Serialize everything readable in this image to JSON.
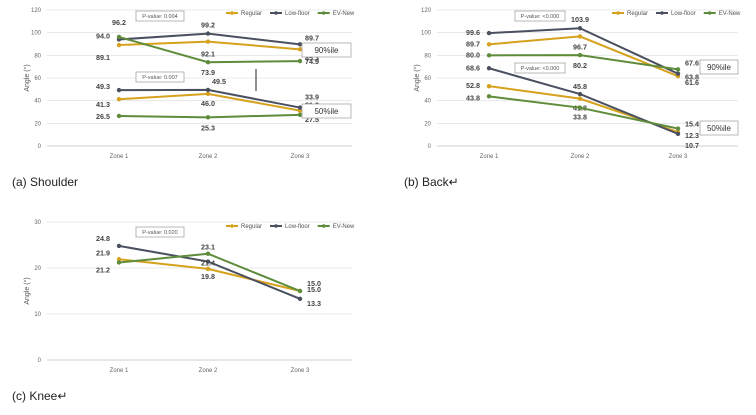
{
  "colors": {
    "Regular": "#d6a21e",
    "Low-floor": "#4a5060",
    "EV-New": "#5e8c3a"
  },
  "chart_data": [
    {
      "type": "line",
      "caption": "(a)  Shoulder",
      "categories": [
        "Zone 1",
        "Zone 2",
        "Zone 3"
      ],
      "ylabel": "Angle (°)",
      "ylim": [
        0,
        120
      ],
      "yticks": [
        0,
        20,
        40,
        60,
        80,
        100,
        120
      ],
      "legend": "top-right",
      "series": [
        {
          "name": "Regular",
          "values": [
            89.1,
            92.1,
            85.3
          ]
        },
        {
          "name": "Low-floor",
          "values": [
            94.0,
            99.2,
            89.7
          ]
        },
        {
          "name": "EV-New",
          "values": [
            96.2,
            73.9,
            74.9
          ]
        },
        {
          "name": "Regular",
          "values": [
            41.3,
            46.0,
            31.2
          ]
        },
        {
          "name": "Low-floor",
          "values": [
            49.3,
            49.5,
            33.9
          ]
        },
        {
          "name": "EV-New",
          "values": [
            26.5,
            25.3,
            27.5
          ]
        }
      ],
      "annotations": [
        {
          "text": "P-value: 0.004"
        },
        {
          "text": "P-value: 0.007"
        },
        {
          "text": "90%ile"
        },
        {
          "text": "50%ile"
        }
      ]
    },
    {
      "type": "line",
      "caption": "(b)  Back↵",
      "categories": [
        "Zone 1",
        "Zone 2",
        "Zone 3"
      ],
      "ylabel": "Angle (°)",
      "ylim": [
        0,
        120
      ],
      "yticks": [
        0,
        20,
        40,
        60,
        80,
        100,
        120
      ],
      "legend": "top-right",
      "series": [
        {
          "name": "Regular",
          "values": [
            89.7,
            96.7,
            61.6
          ]
        },
        {
          "name": "Low-floor",
          "values": [
            99.6,
            103.9,
            63.8
          ]
        },
        {
          "name": "EV-New",
          "values": [
            80.0,
            80.2,
            67.6
          ]
        },
        {
          "name": "Regular",
          "values": [
            52.8,
            41.8,
            12.3
          ]
        },
        {
          "name": "Low-floor",
          "values": [
            68.6,
            45.8,
            10.7
          ]
        },
        {
          "name": "EV-New",
          "values": [
            43.8,
            33.8,
            15.4
          ]
        }
      ],
      "annotations": [
        {
          "text": "P-value: <0.000"
        },
        {
          "text": "P-value: <0.000"
        },
        {
          "text": "90%ile"
        },
        {
          "text": "50%ile"
        }
      ]
    },
    {
      "type": "line",
      "caption": "(c)  Knee↵",
      "categories": [
        "Zone 1",
        "Zone 2",
        "Zone 3"
      ],
      "ylabel": "Angle (°)",
      "ylim": [
        0,
        30
      ],
      "yticks": [
        0,
        10,
        20,
        30
      ],
      "legend": "top-right",
      "series": [
        {
          "name": "Regular",
          "values": [
            21.9,
            19.8,
            15.0
          ]
        },
        {
          "name": "Low-floor",
          "values": [
            24.8,
            21.4,
            13.3
          ]
        },
        {
          "name": "EV-New",
          "values": [
            21.2,
            23.1,
            15.0
          ]
        }
      ],
      "annotations": [
        {
          "text": "P-value: 0.020"
        }
      ]
    }
  ]
}
